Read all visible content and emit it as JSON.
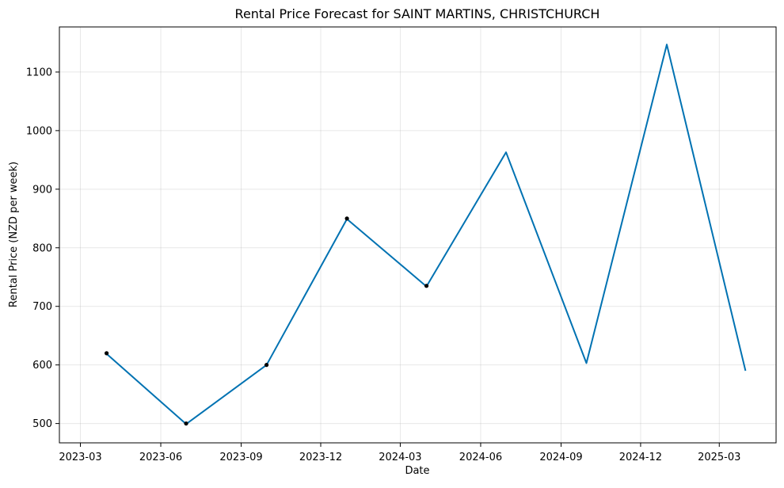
{
  "chart_data": {
    "type": "line",
    "title": "Rental Price Forecast for SAINT MARTINS, CHRISTCHURCH",
    "xlabel": "Date",
    "ylabel": "Rental Price (NZD per week)",
    "x_range": [
      "2023-02-05",
      "2025-05-05"
    ],
    "ylim": [
      467,
      1177
    ],
    "grid": true,
    "x_ticks": [
      "2023-03-01",
      "2023-06-01",
      "2023-09-01",
      "2023-12-01",
      "2024-03-01",
      "2024-06-01",
      "2024-09-01",
      "2024-12-01",
      "2025-03-01"
    ],
    "x_tick_labels": [
      "2023-03",
      "2023-06",
      "2023-09",
      "2023-12",
      "2024-03",
      "2024-06",
      "2024-09",
      "2024-12",
      "2025-03"
    ],
    "y_ticks": [
      500,
      600,
      700,
      800,
      900,
      1000,
      1100
    ],
    "y_tick_labels": [
      "500",
      "600",
      "700",
      "800",
      "900",
      "1000",
      "1100"
    ],
    "series": [
      {
        "kind": "forecast",
        "color": "#0072B2",
        "points": [
          {
            "x": "2023-03-31",
            "y": 619
          },
          {
            "x": "2023-06-30",
            "y": 499
          },
          {
            "x": "2023-09-30",
            "y": 600
          },
          {
            "x": "2023-12-31",
            "y": 849
          },
          {
            "x": "2024-03-31",
            "y": 734
          },
          {
            "x": "2024-06-30",
            "y": 963
          },
          {
            "x": "2024-09-30",
            "y": 603
          },
          {
            "x": "2024-12-31",
            "y": 1147
          },
          {
            "x": "2025-03-31",
            "y": 590
          }
        ]
      },
      {
        "kind": "observed",
        "color": "#000000",
        "points": [
          {
            "x": "2023-03-31",
            "y": 620
          },
          {
            "x": "2023-06-30",
            "y": 500
          },
          {
            "x": "2023-09-30",
            "y": 600
          },
          {
            "x": "2023-12-31",
            "y": 850
          },
          {
            "x": "2024-03-31",
            "y": 735
          }
        ]
      }
    ]
  }
}
